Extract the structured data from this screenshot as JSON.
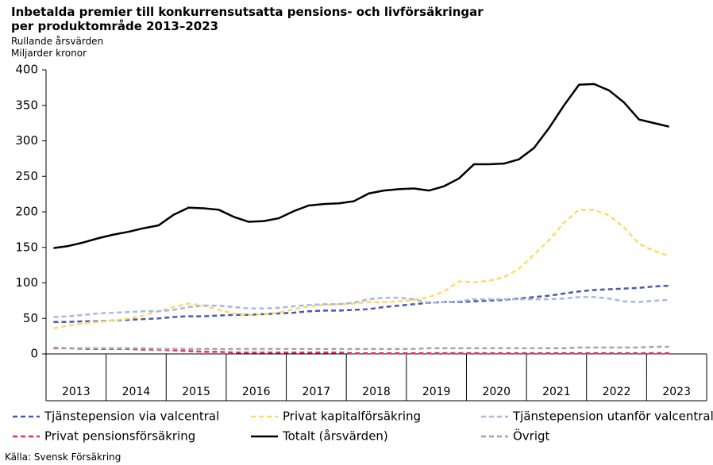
{
  "chart_data": {
    "type": "line",
    "title": "Inbetalda premier till konkurrensutsatta pensions- och livförsäkringar per produktområde 2013–2023",
    "subtitle": "Rullande årsvärden",
    "y_label": "Miljarder kronor",
    "source": "Källa: Svensk Försäkring",
    "categories": [
      "2013",
      null,
      null,
      null,
      "2014",
      null,
      null,
      null,
      "2015",
      null,
      null,
      null,
      "2016",
      null,
      null,
      null,
      "2017",
      null,
      null,
      null,
      "2018",
      null,
      null,
      null,
      "2019",
      null,
      null,
      null,
      "2020",
      null,
      null,
      null,
      "2021",
      null,
      null,
      null,
      "2022",
      null,
      null,
      null,
      "2023",
      null,
      null,
      null
    ],
    "ylim": [
      0,
      400
    ],
    "yticks": [
      0,
      50,
      100,
      150,
      200,
      250,
      300,
      350,
      400
    ],
    "grid": false,
    "series": [
      {
        "name": "Tjänstepension via valcentral",
        "color": "#4a5aa8",
        "dashed": true,
        "values": [
          45,
          45,
          46,
          46,
          47,
          48,
          49,
          50,
          52,
          53,
          53,
          54,
          55,
          55,
          56,
          57,
          58,
          60,
          61,
          61,
          62,
          63,
          66,
          68,
          70,
          72,
          73,
          73,
          74,
          75,
          76,
          78,
          80,
          82,
          85,
          88,
          90,
          91,
          92,
          93,
          95,
          96,
          null,
          null
        ]
      },
      {
        "name": "Privat kapitalförsäkring",
        "color": "#ffd966",
        "dashed": true,
        "values": [
          36,
          40,
          43,
          45,
          47,
          50,
          54,
          60,
          66,
          71,
          68,
          62,
          57,
          55,
          56,
          58,
          63,
          67,
          69,
          70,
          71,
          73,
          73,
          74,
          76,
          80,
          88,
          102,
          101,
          103,
          108,
          120,
          140,
          160,
          185,
          203,
          203,
          195,
          178,
          155,
          145,
          138,
          null,
          null
        ]
      },
      {
        "name": "Tjänstepension utanför valcentral",
        "color": "#a9b8e0",
        "dashed": true,
        "values": [
          52,
          53,
          55,
          57,
          58,
          59,
          60,
          60,
          62,
          66,
          68,
          68,
          66,
          64,
          64,
          65,
          67,
          69,
          70,
          70,
          72,
          77,
          79,
          79,
          77,
          72,
          73,
          74,
          77,
          77,
          77,
          77,
          77,
          77,
          78,
          80,
          80,
          78,
          74,
          73,
          75,
          76,
          null,
          null
        ]
      },
      {
        "name": "Privat pensionsförsäkring",
        "color": "#e0306a",
        "dashed": true,
        "values": [
          8,
          8,
          7,
          7,
          7,
          7,
          6,
          6,
          5,
          4,
          3,
          3,
          2,
          2,
          2,
          2,
          2,
          2,
          2,
          2,
          1,
          1,
          1,
          1,
          1,
          1,
          1,
          1,
          1,
          1,
          1,
          1,
          1,
          1,
          1,
          1,
          1,
          1,
          1,
          1,
          1,
          1,
          null,
          null
        ]
      },
      {
        "name": "Totalt (årsvärden)",
        "color": "#000000",
        "dashed": false,
        "values": [
          149,
          152,
          157,
          163,
          168,
          172,
          177,
          181,
          196,
          206,
          205,
          203,
          193,
          186,
          187,
          191,
          201,
          209,
          211,
          212,
          215,
          226,
          230,
          232,
          233,
          230,
          236,
          247,
          267,
          267,
          268,
          274,
          290,
          318,
          350,
          379,
          380,
          371,
          354,
          330,
          325,
          320,
          null,
          null
        ]
      },
      {
        "name": "Övrigt",
        "color": "#a6a6a6",
        "dashed": true,
        "values": [
          9,
          8,
          8,
          8,
          8,
          8,
          8,
          7,
          7,
          7,
          7,
          7,
          7,
          7,
          7,
          7,
          7,
          7,
          7,
          7,
          7,
          7,
          7,
          7,
          7,
          8,
          8,
          8,
          8,
          8,
          8,
          8,
          8,
          8,
          8,
          9,
          9,
          9,
          9,
          9,
          10,
          10,
          null,
          null
        ]
      }
    ]
  }
}
